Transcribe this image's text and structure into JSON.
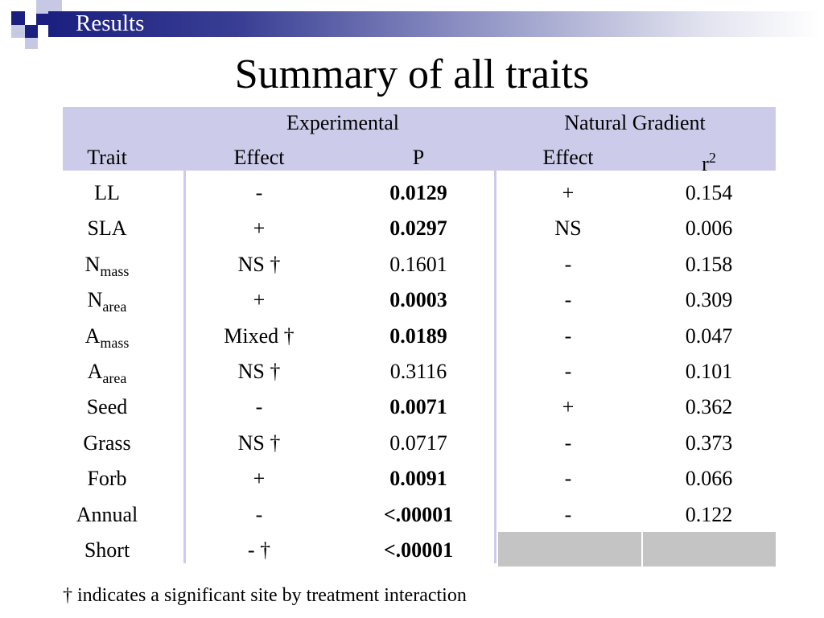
{
  "header": {
    "section": "Results",
    "accent_color": "#1b1f7f",
    "band_color": "#ccccea"
  },
  "title": "Summary of all traits",
  "table": {
    "group_experimental": "Experimental",
    "group_natural": "Natural Gradient",
    "col_trait": "Trait",
    "col_effect": "Effect",
    "col_p": "P",
    "col_natural_effect": "Effect",
    "col_r2_base": "r",
    "col_r2_sup": "2",
    "rows": [
      {
        "trait": "LL",
        "trait_sub": "",
        "effect": "-",
        "p": "0.0129",
        "p_bold": true,
        "nat_effect": "+",
        "r2": "0.154"
      },
      {
        "trait": "SLA",
        "trait_sub": "",
        "effect": "+",
        "p": "0.0297",
        "p_bold": true,
        "nat_effect": "NS",
        "r2": "0.006"
      },
      {
        "trait": "N",
        "trait_sub": "mass",
        "effect": "NS †",
        "p": "0.1601",
        "p_bold": false,
        "nat_effect": "-",
        "r2": "0.158"
      },
      {
        "trait": "N",
        "trait_sub": "area",
        "effect": "+",
        "p": "0.0003",
        "p_bold": true,
        "nat_effect": "-",
        "r2": "0.309"
      },
      {
        "trait": "A",
        "trait_sub": "mass",
        "effect": "Mixed †",
        "p": "0.0189",
        "p_bold": true,
        "nat_effect": "-",
        "r2": "0.047"
      },
      {
        "trait": "A",
        "trait_sub": "area",
        "effect": "NS †",
        "p": "0.3116",
        "p_bold": false,
        "nat_effect": "-",
        "r2": "0.101"
      },
      {
        "trait": "Seed",
        "trait_sub": "",
        "effect": "-",
        "p": "0.0071",
        "p_bold": true,
        "nat_effect": "+",
        "r2": "0.362"
      },
      {
        "trait": "Grass",
        "trait_sub": "",
        "effect": "NS †",
        "p": "0.0717",
        "p_bold": false,
        "nat_effect": "-",
        "r2": "0.373"
      },
      {
        "trait": "Forb",
        "trait_sub": "",
        "effect": "+",
        "p": "0.0091",
        "p_bold": true,
        "nat_effect": "-",
        "r2": "0.066"
      },
      {
        "trait": "Annual",
        "trait_sub": "",
        "effect": "-",
        "p": "<.00001",
        "p_bold": true,
        "nat_effect": "-",
        "r2": "0.122"
      },
      {
        "trait": "Short",
        "trait_sub": "",
        "effect": "- †",
        "p": "<.00001",
        "p_bold": true,
        "nat_effect": "",
        "r2": ""
      }
    ]
  },
  "footnote": "† indicates a significant site by treatment interaction"
}
